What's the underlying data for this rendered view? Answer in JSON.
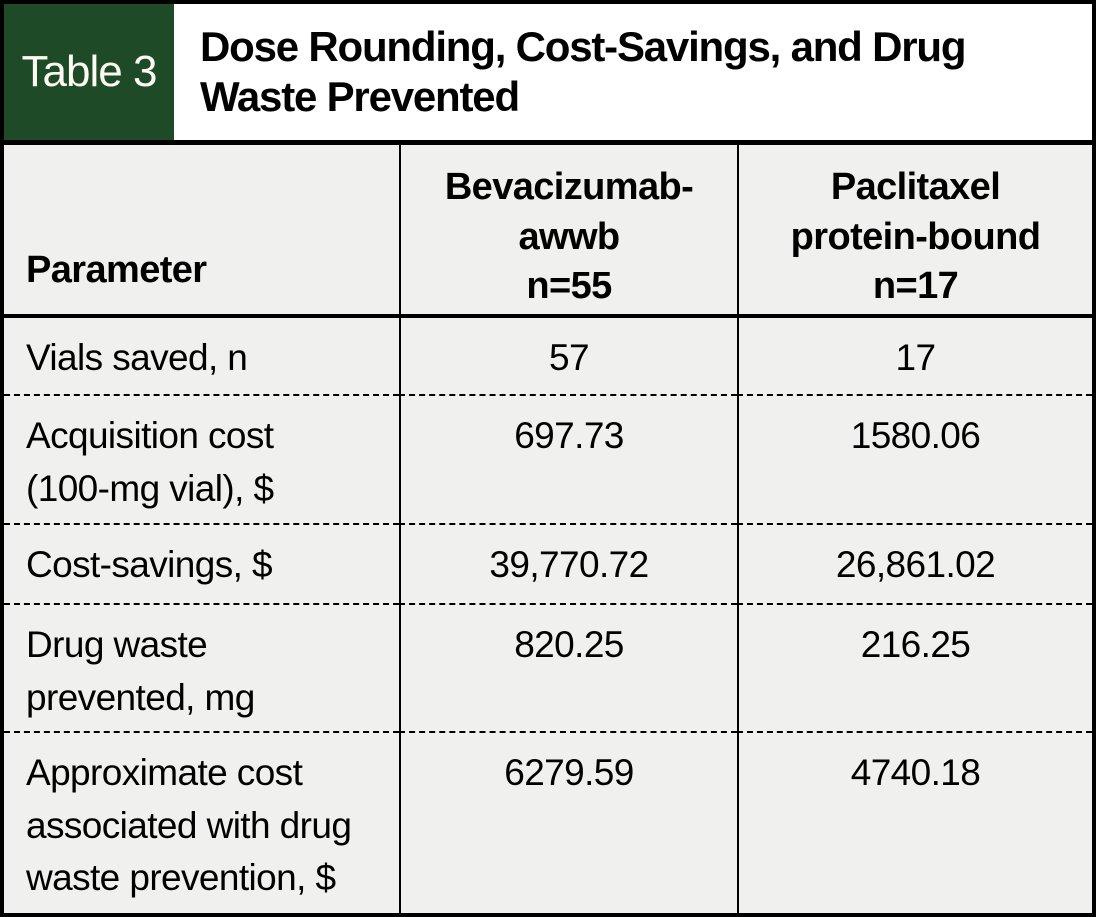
{
  "header": {
    "tag": "Table 3",
    "title": "Dose Rounding, Cost-Savings, and Drug\nWaste Prevented"
  },
  "table": {
    "columns": {
      "parameter": "Parameter",
      "bevacizumab": "Bevacizumab-\nawwb\nn=55",
      "paclitaxel": "Paclitaxel\nprotein-bound\nn=17"
    },
    "rows": [
      {
        "label": "Vials saved, n",
        "bevacizumab": "57",
        "paclitaxel": "17"
      },
      {
        "label": "Acquisition cost\n(100-mg vial), $",
        "bevacizumab": "697.73",
        "paclitaxel": "1580.06"
      },
      {
        "label": "Cost-savings, $",
        "bevacizumab": "39,770.72",
        "paclitaxel": "26,861.02"
      },
      {
        "label": "Drug waste\nprevented, mg",
        "bevacizumab": "820.25",
        "paclitaxel": "216.25"
      },
      {
        "label": "Approximate cost\nassociated with drug\nwaste prevention, $",
        "bevacizumab": "6279.59",
        "paclitaxel": "4740.18"
      }
    ]
  },
  "colors": {
    "accent_green": "#1e4a28",
    "cell_gray": "#f0f0ee",
    "border_black": "#000000"
  },
  "chart_data": {
    "type": "table",
    "title": "Table 3. Dose Rounding, Cost-Savings, and Drug Waste Prevented",
    "columns": [
      "Parameter",
      "Bevacizumab-awwb n=55",
      "Paclitaxel protein-bound n=17"
    ],
    "rows": [
      [
        "Vials saved, n",
        57,
        17
      ],
      [
        "Acquisition cost (100-mg vial), $",
        697.73,
        1580.06
      ],
      [
        "Cost-savings, $",
        39770.72,
        26861.02
      ],
      [
        "Drug waste prevented, mg",
        820.25,
        216.25
      ],
      [
        "Approximate cost associated with drug waste prevention, $",
        6279.59,
        4740.18
      ]
    ]
  }
}
